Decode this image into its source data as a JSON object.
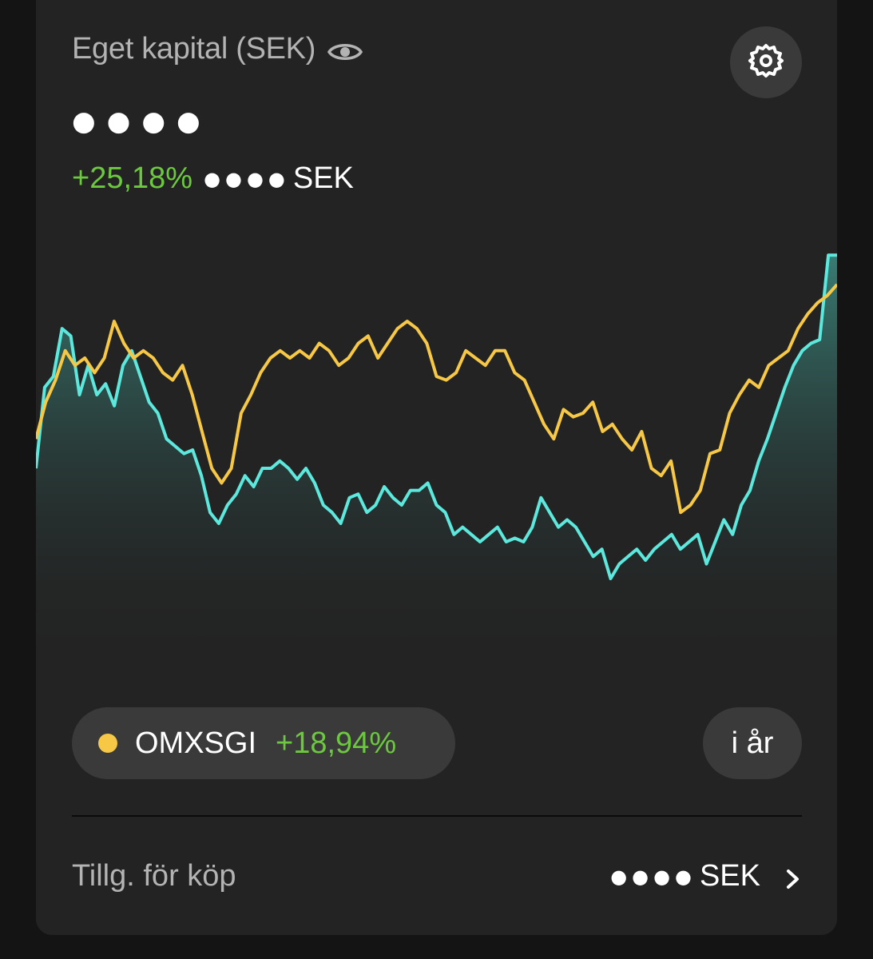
{
  "header": {
    "title": "Eget kapital (SEK)",
    "eye_icon": "eye-icon",
    "settings_icon": "gear-icon",
    "hidden_value": "●●●●",
    "change_pct": "+25,18%",
    "change_dots": "●●●●",
    "change_currency": "SEK"
  },
  "colors": {
    "background": "#232323",
    "positive": "#6cc93f",
    "portfolio_line": "#5ce8dc",
    "benchmark_line": "#f7c845"
  },
  "benchmark": {
    "name": "OMXSGI",
    "change_pct": "+18,94%",
    "dot_color": "#f7c845"
  },
  "period": {
    "label": "i år"
  },
  "footer": {
    "label": "Tillg. för köp",
    "dots": "●●●●",
    "currency": "SEK",
    "chevron_icon": "chevron-right-icon"
  },
  "chart_data": {
    "type": "line",
    "title": "",
    "xlabel": "",
    "ylabel": "",
    "grid": false,
    "ylim": [
      0,
      100
    ],
    "series": [
      {
        "color": "#5ce8dc",
        "fill": true,
        "values": [
          40,
          62,
          65,
          78,
          76,
          60,
          68,
          60,
          63,
          57,
          68,
          72,
          65,
          58,
          55,
          48,
          46,
          44,
          45,
          38,
          28,
          25,
          30,
          33,
          38,
          35,
          40,
          40,
          42,
          40,
          37,
          40,
          36,
          30,
          28,
          25,
          32,
          33,
          28,
          30,
          35,
          32,
          30,
          34,
          34,
          36,
          30,
          28,
          22,
          24,
          22,
          20,
          22,
          24,
          20,
          21,
          20,
          24,
          32,
          28,
          24,
          26,
          24,
          20,
          16,
          18,
          10,
          14,
          16,
          18,
          15,
          18,
          20,
          22,
          18,
          20,
          22,
          14,
          20,
          26,
          22,
          30,
          34,
          42,
          48,
          55,
          62,
          68,
          72,
          74,
          75,
          98,
          98
        ]
      },
      {
        "color": "#f7c845",
        "fill": false,
        "values": [
          48,
          58,
          64,
          72,
          68,
          70,
          66,
          70,
          80,
          74,
          70,
          72,
          70,
          66,
          64,
          68,
          60,
          50,
          40,
          36,
          40,
          55,
          60,
          66,
          70,
          72,
          70,
          72,
          70,
          74,
          72,
          68,
          70,
          74,
          76,
          70,
          74,
          78,
          80,
          78,
          74,
          65,
          64,
          66,
          72,
          70,
          68,
          72,
          72,
          66,
          64,
          58,
          52,
          48,
          56,
          54,
          55,
          58,
          50,
          52,
          48,
          45,
          50,
          40,
          38,
          42,
          28,
          30,
          34,
          44,
          45,
          55,
          60,
          64,
          62,
          68,
          70,
          72,
          78,
          82,
          85,
          87,
          90
        ]
      }
    ]
  }
}
